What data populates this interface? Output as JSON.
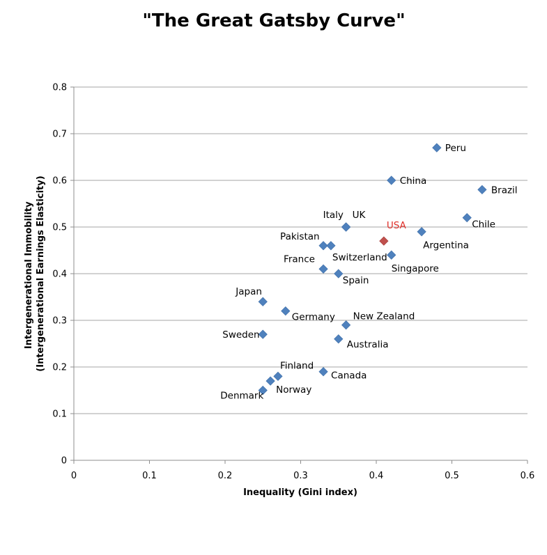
{
  "chart_data": {
    "type": "scatter",
    "title": "\"The Great Gatsby Curve\"",
    "xlabel": "Inequality (Gini index)",
    "ylabel_lines": [
      "Intergenerational Immobility",
      "(Intergenerational Earnings Elasticity)"
    ],
    "xlim": [
      0,
      0.6
    ],
    "ylim": [
      0,
      0.8
    ],
    "x_ticks": [
      0,
      0.1,
      0.2,
      0.3,
      0.4,
      0.5,
      0.6
    ],
    "y_ticks": [
      0,
      0.1,
      0.2,
      0.3,
      0.4,
      0.5,
      0.6,
      0.7,
      0.8
    ],
    "x_tick_labels": [
      "0",
      "0.1",
      "0.2",
      "0.3",
      "0.4",
      "0.5",
      "0.6"
    ],
    "y_tick_labels": [
      "0",
      "0.1",
      "0.2",
      "0.3",
      "0.4",
      "0.5",
      "0.6",
      "0.7",
      "0.8"
    ],
    "grid": "horizontal",
    "legend": "none",
    "colors": {
      "marker": "#4F81BD",
      "highlight_marker": "#C0504D",
      "highlight_label": "#E0302A",
      "label": "#000000",
      "grid": "#A6A6A6",
      "axis": "#8C8C8C"
    },
    "points": [
      {
        "label": "Denmark",
        "x": 0.25,
        "y": 0.15
      },
      {
        "label": "Norway",
        "x": 0.26,
        "y": 0.17
      },
      {
        "label": "Finland",
        "x": 0.27,
        "y": 0.18
      },
      {
        "label": "Canada",
        "x": 0.33,
        "y": 0.19
      },
      {
        "label": "Sweden",
        "x": 0.25,
        "y": 0.27
      },
      {
        "label": "Australia",
        "x": 0.35,
        "y": 0.26
      },
      {
        "label": "New Zealand",
        "x": 0.36,
        "y": 0.29
      },
      {
        "label": "Germany",
        "x": 0.28,
        "y": 0.32
      },
      {
        "label": "Japan",
        "x": 0.25,
        "y": 0.34
      },
      {
        "label": "Spain",
        "x": 0.35,
        "y": 0.4
      },
      {
        "label": "France",
        "x": 0.33,
        "y": 0.41
      },
      {
        "label": "Singapore",
        "x": 0.42,
        "y": 0.44
      },
      {
        "label": "Pakistan",
        "x": 0.33,
        "y": 0.46
      },
      {
        "label": "Switzerland",
        "x": 0.34,
        "y": 0.46
      },
      {
        "label": "USA",
        "x": 0.41,
        "y": 0.47,
        "highlight": true
      },
      {
        "label": "Argentina",
        "x": 0.46,
        "y": 0.49
      },
      {
        "label": "Italy",
        "x": 0.36,
        "y": 0.5
      },
      {
        "label": "UK",
        "x": 0.36,
        "y": 0.5
      },
      {
        "label": "Chile",
        "x": 0.52,
        "y": 0.52
      },
      {
        "label": "Brazil",
        "x": 0.54,
        "y": 0.58
      },
      {
        "label": "China",
        "x": 0.42,
        "y": 0.6
      },
      {
        "label": "Peru",
        "x": 0.48,
        "y": 0.67
      }
    ]
  }
}
